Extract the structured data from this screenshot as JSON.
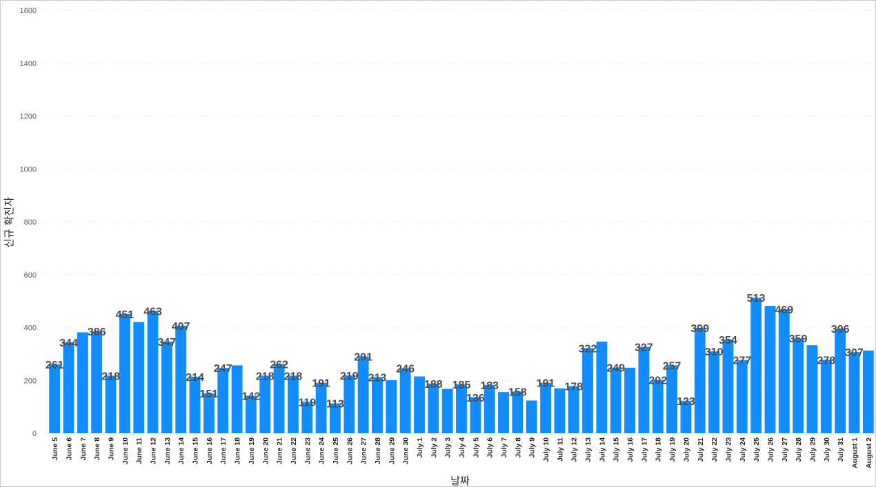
{
  "chart_data": {
    "type": "bar",
    "xlabel": "날짜",
    "ylabel": "신규 확진자",
    "ylim": [
      0,
      1600
    ],
    "yticks": [
      0,
      200,
      400,
      600,
      800,
      1000,
      1200,
      1400,
      1600
    ],
    "grid": true,
    "bar_color": "#118dff",
    "categories": [
      "June 5",
      "June 6",
      "June 7",
      "June 8",
      "June 9",
      "June 10",
      "June 11",
      "June 12",
      "June 13",
      "June 14",
      "June 15",
      "June 16",
      "June 17",
      "June 18",
      "June 19",
      "June 20",
      "June 21",
      "June 22",
      "June 23",
      "June 24",
      "June 25",
      "June 26",
      "June 27",
      "June 28",
      "June 29",
      "June 30",
      "July 1",
      "July 2",
      "July 3",
      "July 4",
      "July 5",
      "July 6",
      "July 7",
      "July 8",
      "July 9",
      "July 10",
      "July 11",
      "July 12",
      "July 13",
      "July 14",
      "July 15",
      "July 16",
      "July 17",
      "July 18",
      "July 19",
      "July 20",
      "July 21",
      "July 22",
      "July 23",
      "July 24",
      "July 25",
      "July 26",
      "July 27",
      "July 28",
      "July 29",
      "July 30",
      "July 31",
      "August 1",
      "August 2"
    ],
    "values": [
      261,
      344,
      382,
      386,
      218,
      451,
      421,
      463,
      347,
      407,
      214,
      151,
      247,
      257,
      142,
      218,
      262,
      218,
      119,
      191,
      113,
      219,
      291,
      213,
      201,
      246,
      215,
      188,
      168,
      185,
      136,
      183,
      156,
      158,
      124,
      191,
      170,
      178,
      322,
      347,
      249,
      248,
      327,
      202,
      257,
      123,
      399,
      310,
      354,
      277,
      513,
      482,
      469,
      359,
      333,
      278,
      396,
      307,
      313
    ],
    "labels": [
      "261",
      "344",
      "",
      "386",
      "218",
      "451",
      "",
      "463",
      "347",
      "407",
      "214",
      "151",
      "247",
      "",
      "142",
      "218",
      "262",
      "218",
      "119",
      "191",
      "113",
      "219",
      "291",
      "213",
      "",
      "246",
      "",
      "188",
      "",
      "185",
      "136",
      "183",
      "",
      "158",
      "",
      "191",
      "",
      "178",
      "322",
      "",
      "249",
      "",
      "327",
      "202",
      "257",
      "123",
      "399",
      "310",
      "354",
      "277",
      "513",
      "",
      "469",
      "359",
      "",
      "278",
      "396",
      "307",
      ""
    ]
  }
}
